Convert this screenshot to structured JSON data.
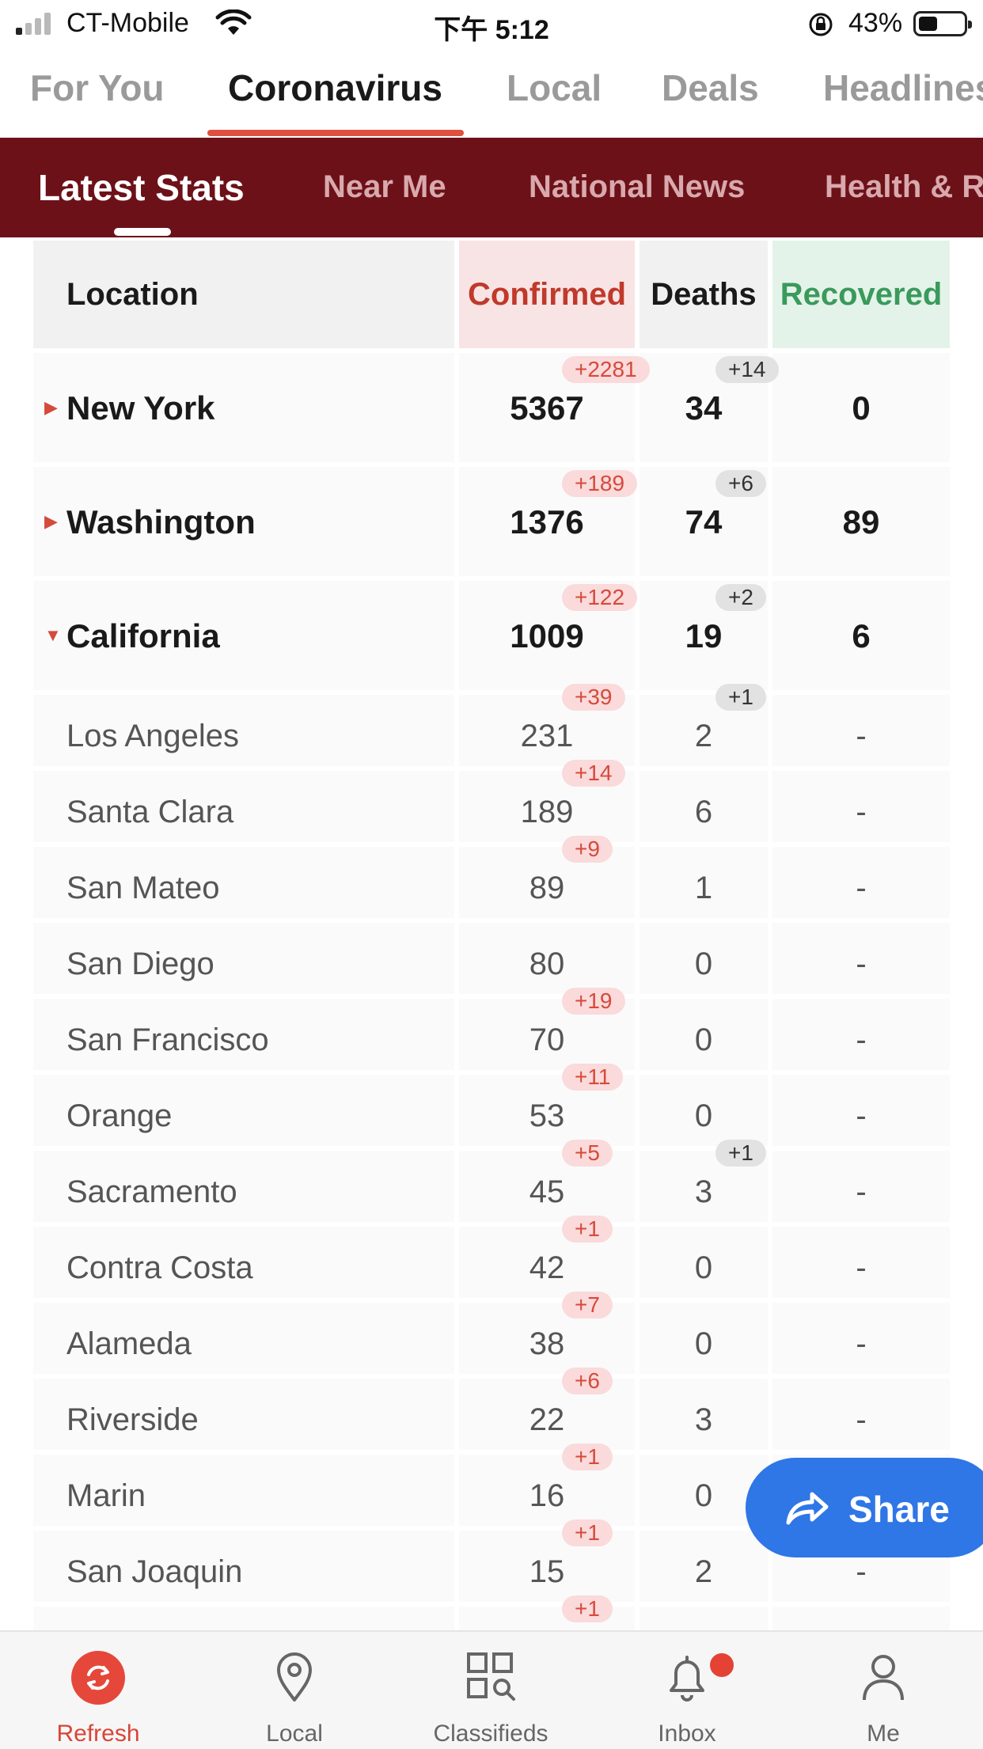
{
  "status_bar": {
    "carrier": "CT-Mobile",
    "time": "下午 5:12",
    "battery": "43%",
    "battery_level": 0.43
  },
  "top_tabs": [
    "For You",
    "Coronavirus",
    "Local",
    "Deals",
    "Headlines"
  ],
  "top_tab_active": "Coronavirus",
  "sub_tabs": [
    "Latest Stats",
    "Near Me",
    "National News",
    "Health & R"
  ],
  "sub_tab_active": "Latest Stats",
  "table": {
    "headers": {
      "location": "Location",
      "confirmed": "Confirmed",
      "deaths": "Deaths",
      "recovered": "Recovered"
    },
    "states": [
      {
        "name": "New York",
        "confirmed": "5367",
        "confirmed_delta": "+2281",
        "deaths": "34",
        "deaths_delta": "+14",
        "recovered": "0",
        "expanded": false
      },
      {
        "name": "Washington",
        "confirmed": "1376",
        "confirmed_delta": "+189",
        "deaths": "74",
        "deaths_delta": "+6",
        "recovered": "89",
        "expanded": false
      },
      {
        "name": "California",
        "confirmed": "1009",
        "confirmed_delta": "+122",
        "deaths": "19",
        "deaths_delta": "+2",
        "recovered": "6",
        "expanded": true
      }
    ],
    "counties": [
      {
        "name": "Los Angeles",
        "confirmed": "231",
        "confirmed_delta": "+39",
        "deaths": "2",
        "deaths_delta": "+1",
        "recovered": "-"
      },
      {
        "name": "Santa Clara",
        "confirmed": "189",
        "confirmed_delta": "+14",
        "deaths": "6",
        "deaths_delta": "",
        "recovered": "-"
      },
      {
        "name": "San Mateo",
        "confirmed": "89",
        "confirmed_delta": "+9",
        "deaths": "1",
        "deaths_delta": "",
        "recovered": "-"
      },
      {
        "name": "San Diego",
        "confirmed": "80",
        "confirmed_delta": "",
        "deaths": "0",
        "deaths_delta": "",
        "recovered": "-"
      },
      {
        "name": "San Francisco",
        "confirmed": "70",
        "confirmed_delta": "+19",
        "deaths": "0",
        "deaths_delta": "",
        "recovered": "-"
      },
      {
        "name": "Orange",
        "confirmed": "53",
        "confirmed_delta": "+11",
        "deaths": "0",
        "deaths_delta": "",
        "recovered": "-"
      },
      {
        "name": "Sacramento",
        "confirmed": "45",
        "confirmed_delta": "+5",
        "deaths": "3",
        "deaths_delta": "+1",
        "recovered": "-"
      },
      {
        "name": "Contra Costa",
        "confirmed": "42",
        "confirmed_delta": "+1",
        "deaths": "0",
        "deaths_delta": "",
        "recovered": "-"
      },
      {
        "name": "Alameda",
        "confirmed": "38",
        "confirmed_delta": "+7",
        "deaths": "0",
        "deaths_delta": "",
        "recovered": "-"
      },
      {
        "name": "Riverside",
        "confirmed": "22",
        "confirmed_delta": "+6",
        "deaths": "3",
        "deaths_delta": "",
        "recovered": "-"
      },
      {
        "name": "Marin",
        "confirmed": "16",
        "confirmed_delta": "+1",
        "deaths": "0",
        "deaths_delta": "",
        "recovered": "-"
      },
      {
        "name": "San Joaquin",
        "confirmed": "15",
        "confirmed_delta": "+1",
        "deaths": "2",
        "deaths_delta": "",
        "recovered": "-"
      },
      {
        "name": "",
        "confirmed": "",
        "confirmed_delta": "+1",
        "deaths": "",
        "deaths_delta": "",
        "recovered": ""
      }
    ]
  },
  "share_button": {
    "label": "Share",
    "icon": "share-arrow-icon"
  },
  "bottom_nav": [
    {
      "label": "Refresh",
      "icon": "refresh-icon",
      "active": true
    },
    {
      "label": "Local",
      "icon": "location-pin-icon",
      "active": false
    },
    {
      "label": "Classifieds",
      "icon": "classifieds-grid-icon",
      "active": false
    },
    {
      "label": "Inbox",
      "icon": "bell-icon",
      "active": false,
      "badge_dot": true
    },
    {
      "label": "Me",
      "icon": "person-icon",
      "active": false
    }
  ],
  "colors": {
    "accent_red": "#e0503f",
    "band_maroon": "#6d1119",
    "confirmed_red": "#c0392b",
    "recovered_green": "#3a9a5b",
    "share_blue": "#2f76e6"
  }
}
